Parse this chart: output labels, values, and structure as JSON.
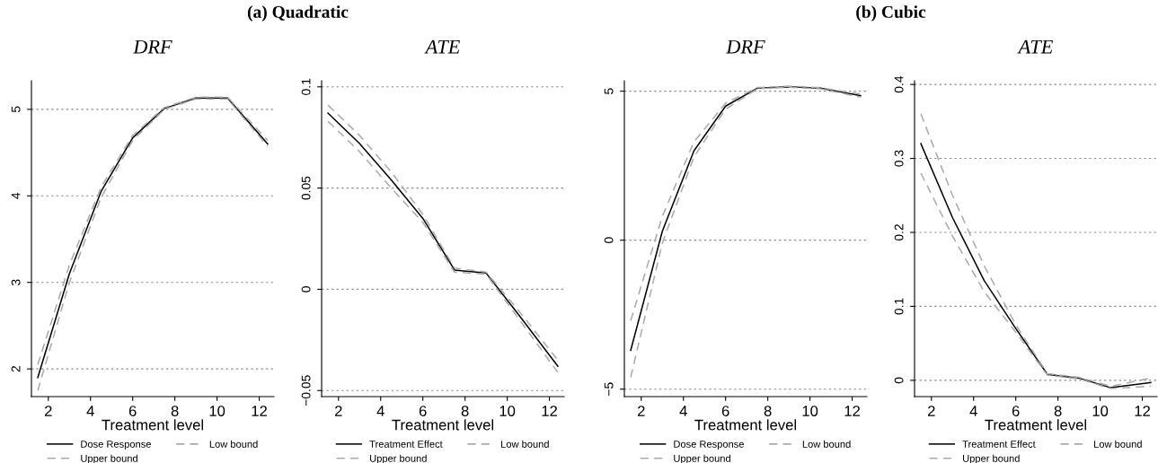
{
  "chart_data": [
    {
      "type": "line",
      "title": "DRF",
      "annotations": [
        "(a) Quadratic"
      ],
      "xlabel": "Treatment level",
      "xlim": [
        1.2,
        12.7
      ],
      "xticks": [
        2,
        4,
        6,
        8,
        10,
        12
      ],
      "ylim": [
        1.68,
        5.33
      ],
      "yticks": [
        2,
        3,
        4,
        5
      ],
      "grid": "y",
      "legend": "bottom",
      "x": [
        1.5,
        3,
        4.5,
        6,
        7.5,
        9,
        10.5,
        12.4
      ],
      "series": [
        {
          "name": "Dose Response",
          "color": "#000000",
          "line_style": "solid",
          "values": [
            1.9,
            3.1,
            4.05,
            4.67,
            5.01,
            5.13,
            5.13,
            4.6
          ]
        },
        {
          "name": "Low bound",
          "color": "#aaaaaa",
          "line_style": "dashed",
          "values": [
            1.75,
            3.0,
            3.98,
            4.64,
            5.0,
            5.12,
            5.12,
            4.57
          ]
        },
        {
          "name": "Upper bound",
          "color": "#aaaaaa",
          "line_style": "dashed",
          "values": [
            2.05,
            3.2,
            4.1,
            4.7,
            5.02,
            5.14,
            5.14,
            4.64
          ]
        }
      ]
    },
    {
      "type": "line",
      "title": "ATE",
      "xlabel": "Treatment level",
      "xlim": [
        1.2,
        12.7
      ],
      "xticks": [
        2,
        4,
        6,
        8,
        10,
        12
      ],
      "ylim": [
        -0.053,
        0.103
      ],
      "yticks": [
        {
          "value": -0.05,
          "label": "−0.05"
        },
        0,
        0.05,
        0.1
      ],
      "grid": "y",
      "legend": "bottom",
      "x": [
        1.5,
        3,
        4.5,
        6,
        7.5,
        9,
        10.5,
        12.4
      ],
      "series": [
        {
          "name": "Treatment Effect",
          "color": "#000000",
          "line_style": "solid",
          "values": [
            0.087,
            0.072,
            0.054,
            0.035,
            0.0095,
            0.008,
            -0.012,
            -0.038
          ]
        },
        {
          "name": "Low bound",
          "color": "#aaaaaa",
          "line_style": "dashed",
          "values": [
            0.083,
            0.068,
            0.05,
            0.033,
            0.0085,
            0.0075,
            -0.014,
            -0.041
          ]
        },
        {
          "name": "Upper bound",
          "color": "#aaaaaa",
          "line_style": "dashed",
          "values": [
            0.091,
            0.076,
            0.058,
            0.037,
            0.0105,
            0.0085,
            -0.01,
            -0.035
          ]
        }
      ]
    },
    {
      "type": "line",
      "title": "DRF",
      "annotations": [
        "(b) Cubic"
      ],
      "xlabel": "Treatment level",
      "xlim": [
        1.2,
        12.7
      ],
      "xticks": [
        2,
        4,
        6,
        8,
        10,
        12
      ],
      "ylim": [
        -5.25,
        5.35
      ],
      "yticks": [
        {
          "value": -5,
          "label": "−5"
        },
        0,
        5
      ],
      "grid": "y",
      "legend": "bottom",
      "x": [
        1.5,
        3,
        4.5,
        6,
        7.5,
        9,
        10.5,
        12.4
      ],
      "series": [
        {
          "name": "Dose Response",
          "color": "#000000",
          "line_style": "solid",
          "values": [
            -3.7,
            0.3,
            3.0,
            4.5,
            5.1,
            5.15,
            5.1,
            4.85
          ]
        },
        {
          "name": "Low bound",
          "color": "#aaaaaa",
          "line_style": "dashed",
          "values": [
            -4.6,
            -0.1,
            2.8,
            4.4,
            5.08,
            5.13,
            5.08,
            4.8
          ]
        },
        {
          "name": "Upper bound",
          "color": "#aaaaaa",
          "line_style": "dashed",
          "values": [
            -2.7,
            0.8,
            3.3,
            4.6,
            5.12,
            5.17,
            5.12,
            4.9
          ]
        }
      ]
    },
    {
      "type": "line",
      "title": "ATE",
      "xlabel": "Treatment level",
      "xlim": [
        1.2,
        12.7
      ],
      "xticks": [
        2,
        4,
        6,
        8,
        10,
        12
      ],
      "ylim": [
        -0.022,
        0.405
      ],
      "yticks": [
        0,
        0.1,
        0.2,
        0.3,
        0.4
      ],
      "grid": "y",
      "legend": "bottom",
      "x": [
        1.5,
        3,
        4.5,
        6,
        7.5,
        9,
        10.5,
        12.4
      ],
      "series": [
        {
          "name": "Treatment Effect",
          "color": "#000000",
          "line_style": "solid",
          "values": [
            0.32,
            0.22,
            0.135,
            0.07,
            0.008,
            0.003,
            -0.01,
            -0.003
          ]
        },
        {
          "name": "Low bound",
          "color": "#aaaaaa",
          "line_style": "dashed",
          "values": [
            0.28,
            0.195,
            0.12,
            0.065,
            0.007,
            0.002,
            -0.011,
            -0.008
          ]
        },
        {
          "name": "Upper bound",
          "color": "#aaaaaa",
          "line_style": "dashed",
          "values": [
            0.36,
            0.25,
            0.155,
            0.075,
            0.009,
            0.004,
            -0.008,
            0.003
          ]
        }
      ]
    }
  ]
}
